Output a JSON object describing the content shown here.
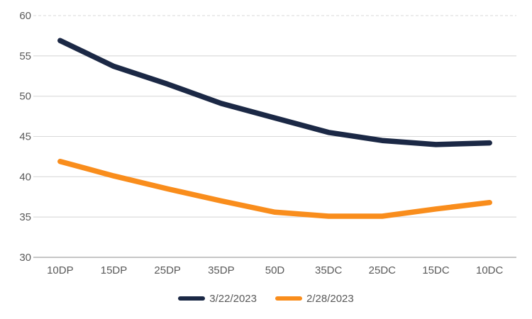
{
  "chart_data": {
    "type": "line",
    "title": "",
    "xlabel": "",
    "ylabel": "",
    "categories": [
      "10DP",
      "15DP",
      "25DP",
      "35DP",
      "50D",
      "35DC",
      "25DC",
      "15DC",
      "10DC"
    ],
    "series": [
      {
        "name": "3/22/2023",
        "color": "#1b2845",
        "values": [
          56.9,
          53.7,
          51.5,
          49.1,
          47.3,
          45.5,
          44.5,
          44.0,
          44.2
        ]
      },
      {
        "name": "2/28/2023",
        "color": "#f98d1c",
        "values": [
          41.9,
          40.1,
          38.5,
          37.0,
          35.6,
          35.1,
          35.1,
          36.0,
          36.8
        ]
      }
    ],
    "ylim": [
      30,
      60
    ],
    "yticks": [
      30,
      35,
      40,
      45,
      50,
      55,
      60
    ],
    "grid": "horizontal",
    "top_gridline_dashed": true,
    "gridline_color": "#d9d9d9",
    "axis_line_color": "#b3b3b3",
    "tick_label_color": "#595959",
    "legend_position": "bottom-center"
  }
}
